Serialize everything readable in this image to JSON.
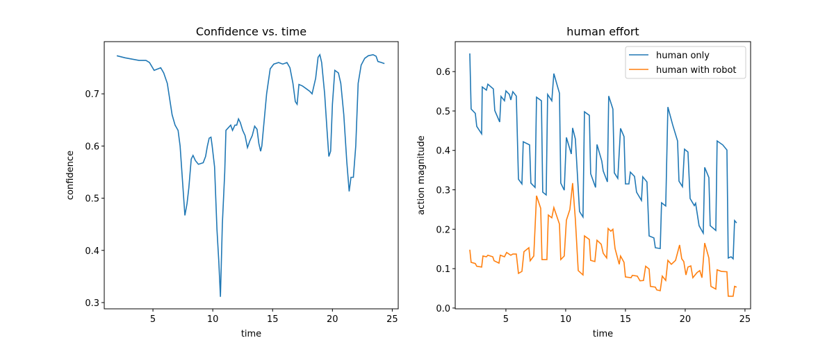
{
  "chart_data": [
    {
      "type": "line",
      "title": "Confidence vs. time",
      "x_label": "time",
      "y_label": "confidence",
      "color": "#1f77b4",
      "x": [
        1.98,
        2.67,
        3.84,
        4.42,
        4.71,
        5.1,
        5.65,
        5.9,
        6.2,
        6.6,
        6.85,
        7.1,
        7.27,
        7.45,
        7.67,
        7.85,
        8.0,
        8.2,
        8.35,
        8.55,
        8.8,
        9.2,
        9.4,
        9.55,
        9.7,
        9.85,
        9.95,
        10.15,
        10.35,
        10.5,
        10.64,
        10.8,
        11.0,
        11.1,
        11.3,
        11.5,
        11.65,
        11.85,
        12.0,
        12.15,
        12.3,
        12.5,
        12.7,
        12.9,
        13.1,
        13.3,
        13.5,
        13.7,
        13.85,
        14.0,
        14.1,
        14.3,
        14.5,
        14.8,
        15.1,
        15.5,
        15.85,
        16.2,
        16.45,
        16.7,
        16.9,
        17.05,
        17.2,
        17.5,
        17.8,
        18.1,
        18.3,
        18.6,
        18.8,
        18.95,
        19.1,
        19.35,
        19.55,
        19.7,
        19.85,
        20.0,
        20.2,
        20.5,
        20.7,
        20.95,
        21.2,
        21.4,
        21.55,
        21.75,
        21.95,
        22.15,
        22.4,
        22.7,
        23.0,
        23.4,
        23.65,
        23.8,
        24.1,
        24.35
      ],
      "values": [
        0.773,
        0.769,
        0.764,
        0.764,
        0.76,
        0.745,
        0.75,
        0.74,
        0.72,
        0.66,
        0.64,
        0.63,
        0.6,
        0.54,
        0.467,
        0.49,
        0.52,
        0.575,
        0.582,
        0.572,
        0.565,
        0.568,
        0.58,
        0.6,
        0.615,
        0.617,
        0.6,
        0.56,
        0.44,
        0.38,
        0.311,
        0.45,
        0.55,
        0.63,
        0.635,
        0.64,
        0.63,
        0.64,
        0.64,
        0.652,
        0.645,
        0.63,
        0.62,
        0.597,
        0.61,
        0.62,
        0.638,
        0.632,
        0.605,
        0.59,
        0.6,
        0.65,
        0.7,
        0.748,
        0.757,
        0.76,
        0.757,
        0.76,
        0.75,
        0.72,
        0.685,
        0.68,
        0.718,
        0.715,
        0.71,
        0.705,
        0.7,
        0.73,
        0.77,
        0.775,
        0.76,
        0.7,
        0.63,
        0.58,
        0.59,
        0.68,
        0.745,
        0.74,
        0.72,
        0.66,
        0.57,
        0.513,
        0.54,
        0.54,
        0.6,
        0.72,
        0.755,
        0.768,
        0.773,
        0.775,
        0.772,
        0.762,
        0.76,
        0.758
      ],
      "xlim": [
        0.93,
        25.5
      ],
      "ylim": [
        0.288,
        0.8
      ],
      "xticks": [
        5,
        10,
        15,
        20,
        25
      ],
      "yticks": [
        0.3,
        0.4,
        0.5,
        0.6,
        0.7
      ]
    },
    {
      "type": "line",
      "title": "human effort",
      "x_label": "time",
      "y_label": "action magnitude",
      "legend": "upper right",
      "series": [
        {
          "name": "human only",
          "color": "#1f77b4",
          "x": [
            1.98,
            2.09,
            2.44,
            2.56,
            2.97,
            3.02,
            3.37,
            3.49,
            3.95,
            4.07,
            4.48,
            4.59,
            4.88,
            5.0,
            5.29,
            5.41,
            5.58,
            5.87,
            6.05,
            6.34,
            6.45,
            6.98,
            7.09,
            7.44,
            7.56,
            7.97,
            8.08,
            8.37,
            8.49,
            8.84,
            9.01,
            9.48,
            9.59,
            9.88,
            10.06,
            10.47,
            10.58,
            10.81,
            11.16,
            11.45,
            11.57,
            11.98,
            12.09,
            12.5,
            12.62,
            13.02,
            13.14,
            13.49,
            13.6,
            13.95,
            14.07,
            14.36,
            14.59,
            14.88,
            15.0,
            15.29,
            15.41,
            15.76,
            15.93,
            16.34,
            16.45,
            16.8,
            16.98,
            17.38,
            17.5,
            17.91,
            18.02,
            18.37,
            18.55,
            18.95,
            19.36,
            19.48,
            19.77,
            19.94,
            20.23,
            20.41,
            20.76,
            20.87,
            21.16,
            21.51,
            21.63,
            21.98,
            22.09,
            22.56,
            22.67,
            23.14,
            23.49,
            23.6,
            23.84,
            24.01,
            24.13,
            24.3
          ],
          "values": [
            0.646,
            0.505,
            0.494,
            0.461,
            0.442,
            0.561,
            0.553,
            0.568,
            0.556,
            0.501,
            0.472,
            0.537,
            0.526,
            0.551,
            0.542,
            0.528,
            0.549,
            0.538,
            0.327,
            0.315,
            0.422,
            0.414,
            0.317,
            0.306,
            0.535,
            0.526,
            0.294,
            0.287,
            0.542,
            0.526,
            0.595,
            0.545,
            0.317,
            0.299,
            0.433,
            0.391,
            0.457,
            0.429,
            0.245,
            0.231,
            0.498,
            0.489,
            0.341,
            0.306,
            0.415,
            0.373,
            0.348,
            0.32,
            0.538,
            0.505,
            0.343,
            0.329,
            0.456,
            0.435,
            0.315,
            0.315,
            0.345,
            0.334,
            0.294,
            0.273,
            0.333,
            0.32,
            0.183,
            0.178,
            0.153,
            0.151,
            0.267,
            0.259,
            0.51,
            0.465,
            0.424,
            0.322,
            0.308,
            0.403,
            0.396,
            0.278,
            0.26,
            0.266,
            0.209,
            0.19,
            0.357,
            0.331,
            0.209,
            0.197,
            0.424,
            0.414,
            0.401,
            0.127,
            0.13,
            0.125,
            0.222,
            0.216
          ]
        },
        {
          "name": "human with robot",
          "color": "#ff7f0e",
          "x": [
            1.98,
            2.09,
            2.44,
            2.56,
            2.97,
            3.08,
            3.37,
            3.49,
            3.9,
            4.01,
            4.42,
            4.53,
            4.88,
            5.06,
            5.41,
            5.58,
            5.87,
            6.05,
            6.34,
            6.51,
            6.92,
            7.03,
            7.33,
            7.56,
            7.91,
            8.02,
            8.43,
            8.55,
            8.84,
            9.01,
            9.48,
            9.59,
            9.88,
            10.06,
            10.35,
            10.58,
            10.81,
            11.05,
            11.45,
            11.57,
            11.98,
            12.09,
            12.44,
            12.62,
            12.97,
            13.14,
            13.43,
            13.55,
            13.78,
            13.95,
            14.13,
            14.48,
            14.59,
            14.88,
            15.0,
            15.47,
            15.58,
            15.99,
            16.22,
            16.51,
            16.69,
            16.98,
            17.09,
            17.5,
            17.62,
            17.91,
            18.08,
            18.37,
            18.55,
            18.84,
            19.19,
            19.53,
            19.71,
            19.88,
            20.06,
            20.23,
            20.47,
            20.64,
            20.99,
            21.22,
            21.4,
            21.63,
            21.98,
            22.15,
            22.56,
            22.67,
            23.02,
            23.49,
            23.6,
            24.01,
            24.13,
            24.3
          ],
          "values": [
            0.148,
            0.116,
            0.113,
            0.106,
            0.104,
            0.132,
            0.13,
            0.134,
            0.13,
            0.12,
            0.114,
            0.134,
            0.13,
            0.141,
            0.134,
            0.137,
            0.137,
            0.088,
            0.093,
            0.143,
            0.153,
            0.12,
            0.132,
            0.285,
            0.253,
            0.123,
            0.123,
            0.236,
            0.229,
            0.255,
            0.213,
            0.123,
            0.132,
            0.223,
            0.25,
            0.317,
            0.225,
            0.095,
            0.084,
            0.183,
            0.174,
            0.121,
            0.118,
            0.172,
            0.162,
            0.139,
            0.127,
            0.202,
            0.195,
            0.2,
            0.151,
            0.111,
            0.132,
            0.116,
            0.079,
            0.077,
            0.083,
            0.081,
            0.069,
            0.07,
            0.106,
            0.099,
            0.055,
            0.053,
            0.046,
            0.044,
            0.081,
            0.07,
            0.121,
            0.111,
            0.121,
            0.16,
            0.125,
            0.118,
            0.084,
            0.104,
            0.107,
            0.077,
            0.09,
            0.095,
            0.077,
            0.165,
            0.127,
            0.055,
            0.048,
            0.097,
            0.093,
            0.092,
            0.03,
            0.03,
            0.055,
            0.053
          ]
        }
      ],
      "xlim": [
        0.76,
        25.47
      ],
      "ylim": [
        -0.002,
        0.676
      ],
      "xticks": [
        5,
        10,
        15,
        20,
        25
      ],
      "yticks": [
        {
          "value": 0,
          "label": "0.0"
        },
        0.1,
        0.2,
        0.3,
        0.4,
        0.5,
        0.6
      ]
    }
  ]
}
